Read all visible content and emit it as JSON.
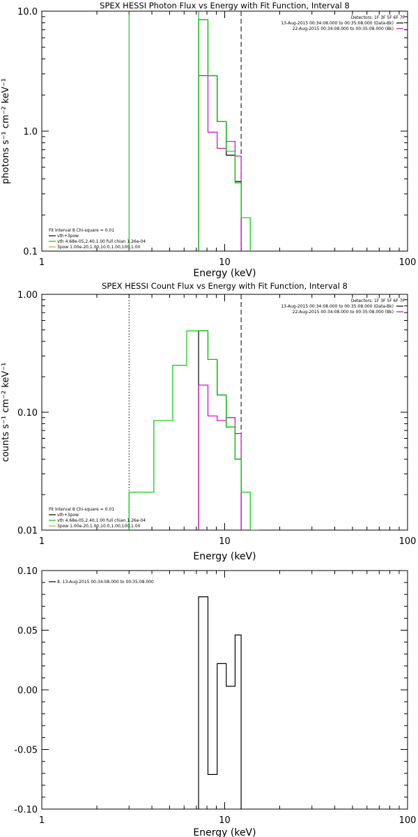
{
  "chart_data": [
    {
      "type": "line",
      "step": true,
      "title": "SPEX HESSI Photon Flux vs Energy with Fit Function, Interval 8",
      "xlabel": "Energy (keV)",
      "ylabel": "photons s⁻¹ cm⁻² keV⁻¹",
      "xscale": "log",
      "yscale": "log",
      "xlim": [
        1,
        100
      ],
      "ylim": [
        0.1,
        10
      ],
      "xticks": [
        1,
        10,
        100
      ],
      "xtick_labels": [
        "1",
        "10",
        "100"
      ],
      "yticks": [
        0.1,
        1,
        10
      ],
      "ytick_labels": [
        "0.1",
        "1.0",
        "10.0"
      ],
      "vlines": [
        {
          "x": 3.0,
          "style": "solid",
          "color": "#00aa00"
        },
        {
          "x": 7.2,
          "style": "solid",
          "color": "#00aa00"
        },
        {
          "x": 12.3,
          "style": "dashed",
          "color": "#000000"
        }
      ],
      "legend_top_right": {
        "lines": [
          {
            "text": "Detectors: 1F 3F 5F 6F 7F",
            "color": ""
          },
          {
            "text": "13-Aug-2015 00:34:08.000 to 00:35:08.000 (Data-Bk)",
            "color": "#000000"
          },
          {
            "text": "22-Aug-2015 00:34:08.000 to 00:35:08.000 (Bk)",
            "color": "#cc00cc"
          }
        ]
      },
      "legend_bottom_left": {
        "lines": [
          {
            "text": "Fit Interval 8   Chi-square = 0.01",
            "color": ""
          },
          {
            "text": "vth+3pow",
            "color": "#000000"
          },
          {
            "text": "vth 4.68e-05,2.40,1.00  full chian 1.26e-04",
            "color": "#00cc00"
          },
          {
            "text": "3pow 1.00e-20,1.00,10.0,1.00,100,1.00",
            "color": "#ccaa00"
          }
        ]
      },
      "series": [
        {
          "color": "#000000",
          "edges": [
            7.2,
            8.1,
            9.1,
            10.2,
            11.4,
            12.3
          ],
          "values": [
            8.5,
            2.9,
            1.2,
            0.63,
            0.38
          ]
        },
        {
          "color": "#cc00cc",
          "edges": [
            7.2,
            8.1,
            9.1,
            10.2,
            11.4,
            12.3
          ],
          "values": [
            2.9,
            0.98,
            0.72,
            0.82,
            0.62
          ]
        },
        {
          "color": "#00cc00",
          "edges": [
            7.2,
            8.1,
            9.1,
            10.2,
            11.4,
            12.3,
            13.8
          ],
          "values": [
            8.5,
            2.9,
            1.2,
            0.68,
            0.37,
            0.19
          ]
        }
      ]
    },
    {
      "type": "line",
      "step": true,
      "title": "SPEX HESSI Count Flux vs Energy with Fit Function, Interval 8",
      "xlabel": "Energy (keV)",
      "ylabel": "counts s⁻¹ cm⁻² keV⁻¹",
      "xscale": "log",
      "yscale": "log",
      "xlim": [
        1,
        100
      ],
      "ylim": [
        0.01,
        1
      ],
      "xticks": [
        1,
        10,
        100
      ],
      "xtick_labels": [
        "1",
        "10",
        "100"
      ],
      "yticks": [
        0.01,
        0.1,
        1
      ],
      "ytick_labels": [
        "0.01",
        "0.10",
        "1.00"
      ],
      "vlines": [
        {
          "x": 3.0,
          "style": "dotted",
          "color": "#000000"
        },
        {
          "x": 12.3,
          "style": "dashed",
          "color": "#000000"
        }
      ],
      "legend_top_right": {
        "lines": [
          {
            "text": "Detectors: 1F 3F 5F 6F 7F",
            "color": ""
          },
          {
            "text": "13-Aug-2015 00:34:08.000 to 00:35:08.000 (Data-Bk)",
            "color": "#000000"
          },
          {
            "text": "22-Aug-2015 00:34:08.000 to 00:35:08.000 (Bk)",
            "color": "#cc00cc"
          }
        ]
      },
      "legend_bottom_left": {
        "lines": [
          {
            "text": "Fit Interval 8   Chi-square = 0.01",
            "color": ""
          },
          {
            "text": "vth+3pow",
            "color": "#000000"
          },
          {
            "text": "vth 4.68e-05,2.40,1.00  full chian 1.26e-04",
            "color": "#00cc00"
          },
          {
            "text": "3pow 1.00e-20,1.00,10.0,1.00,100,1.00",
            "color": "#ccaa00"
          }
        ]
      },
      "series": [
        {
          "color": "#000000",
          "edges": [
            7.2,
            8.1,
            9.1,
            10.2,
            11.4,
            12.3
          ],
          "values": [
            0.49,
            0.28,
            0.14,
            0.075,
            0.04
          ]
        },
        {
          "color": "#cc00cc",
          "edges": [
            7.2,
            8.1,
            9.1,
            10.2,
            11.4,
            12.3
          ],
          "values": [
            0.17,
            0.093,
            0.085,
            0.09,
            0.066
          ]
        },
        {
          "color": "#00cc00",
          "edges": [
            3.0,
            4.1,
            5.2,
            6.2,
            7.2,
            8.1,
            9.1,
            10.2,
            11.4,
            12.3,
            13.8,
            15.3
          ],
          "values": [
            0.021,
            0.085,
            0.25,
            0.49,
            0.49,
            0.28,
            0.14,
            0.075,
            0.04,
            0.021,
            0.01
          ]
        }
      ]
    },
    {
      "type": "line",
      "step": true,
      "title": "",
      "xlabel": "Energy (keV)",
      "ylabel": "",
      "xscale": "log",
      "yscale": "linear",
      "xlim": [
        1,
        100
      ],
      "ylim": [
        -0.1,
        0.1
      ],
      "xticks": [
        1,
        10,
        100
      ],
      "xtick_labels": [
        "1",
        "10",
        "100"
      ],
      "yticks": [
        -0.1,
        -0.05,
        0,
        0.05,
        0.1
      ],
      "ytick_labels": [
        "-0.10",
        "-0.05",
        "0.00",
        "0.05",
        "0.10"
      ],
      "vlines": [],
      "legend_top_left": {
        "lines": [
          {
            "text": "8. 13-Aug-2015 00:34:08.000 to 00:35:08.000",
            "color": "#000000"
          }
        ]
      },
      "series": [
        {
          "color": "#000000",
          "edges": [
            7.2,
            8.1,
            9.1,
            10.2,
            11.4,
            12.3
          ],
          "values": [
            0.078,
            -0.071,
            0.022,
            0.003,
            0.046
          ]
        }
      ]
    }
  ]
}
